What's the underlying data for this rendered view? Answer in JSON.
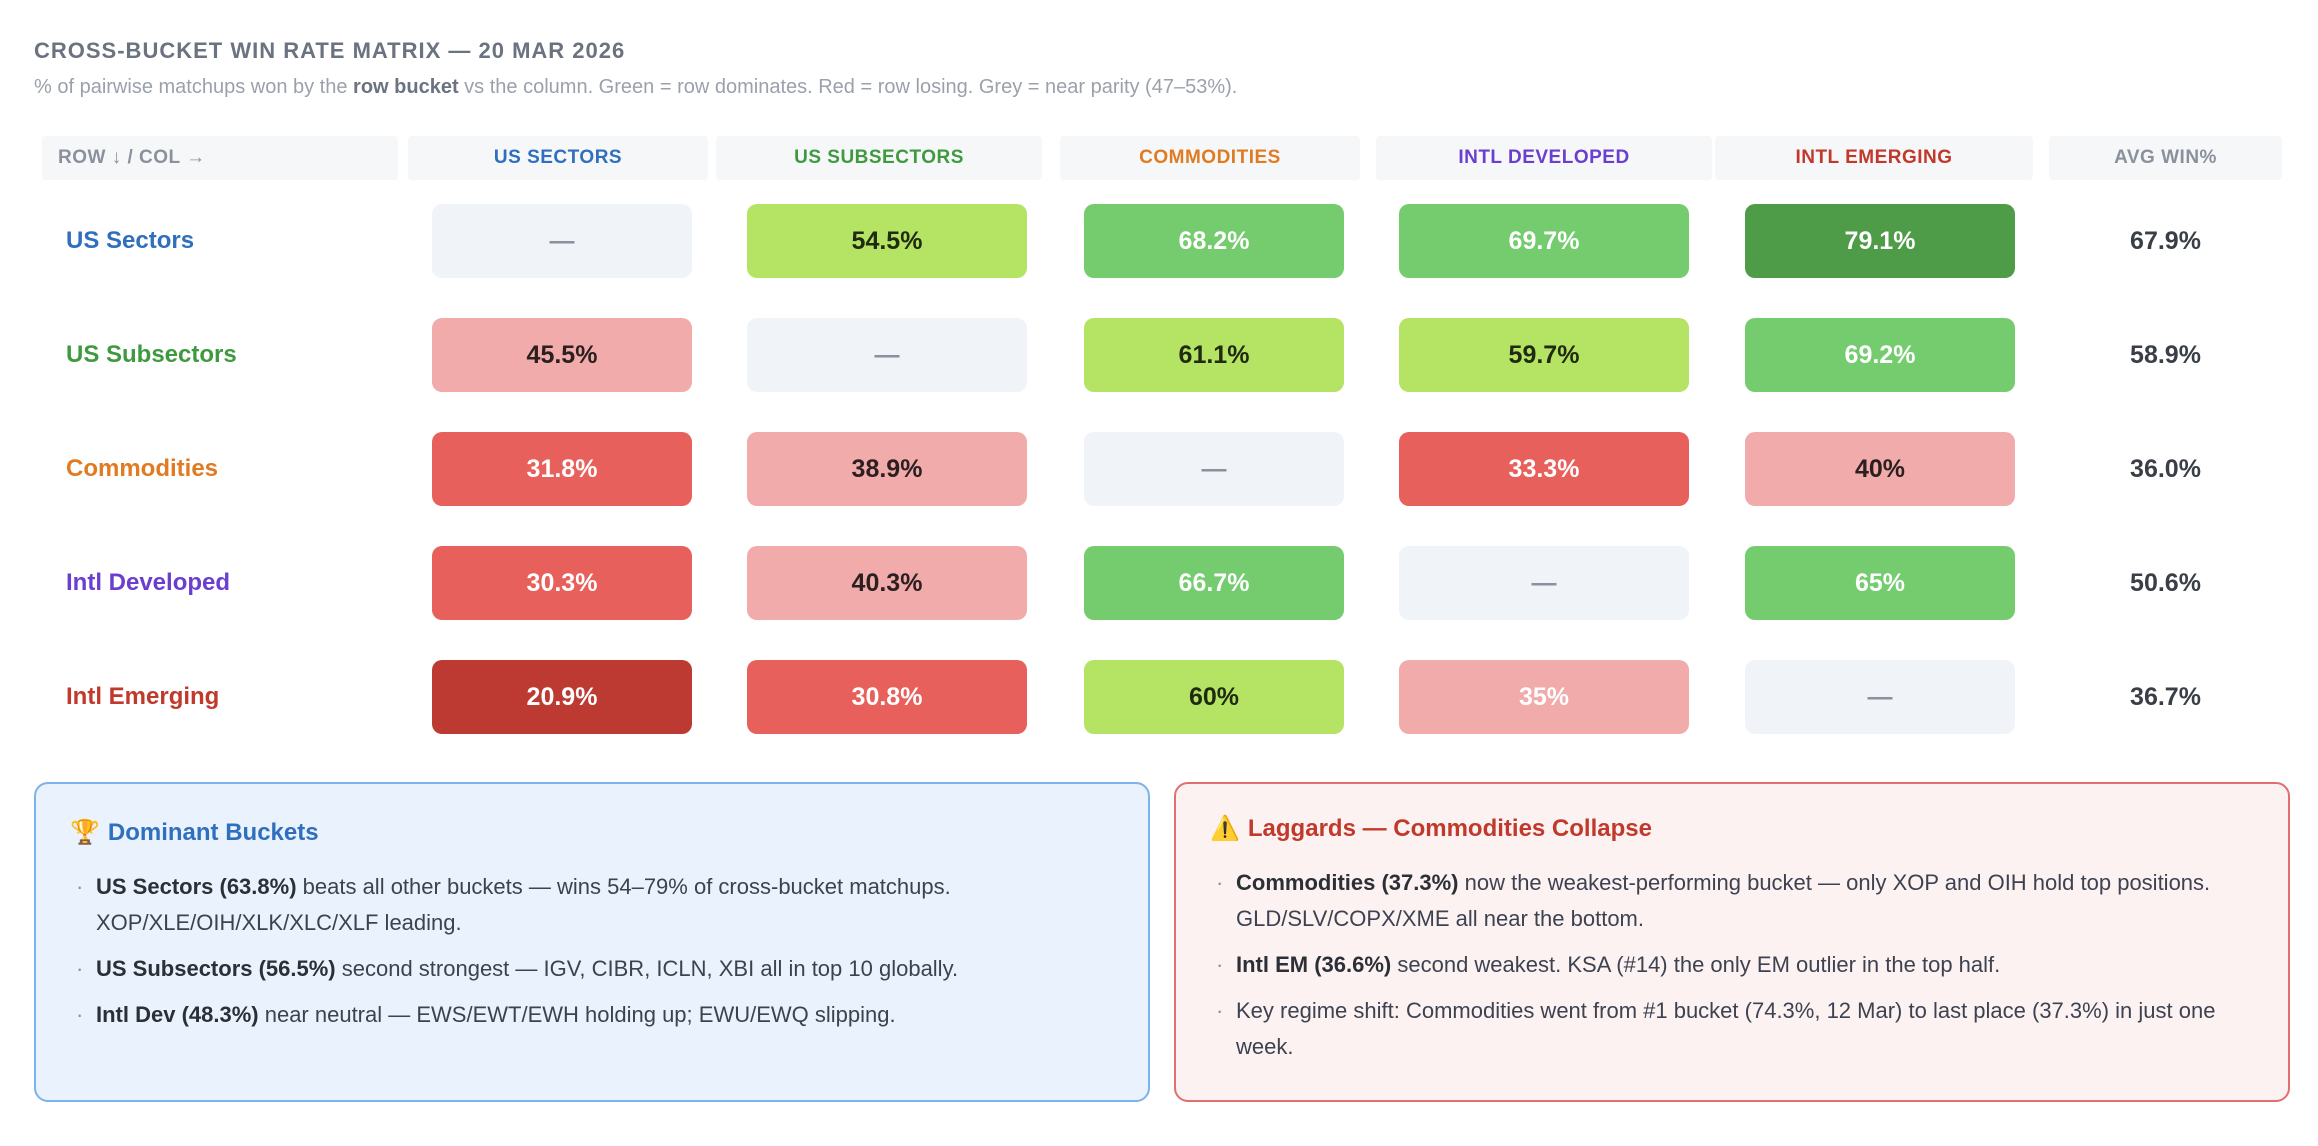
{
  "header": {
    "title": "CROSS-BUCKET WIN RATE MATRIX — 20 MAR 2026",
    "subtitle_pre": "% of pairwise matchups won by the ",
    "subtitle_bold": "row bucket",
    "subtitle_post": " vs the column. Green = row dominates. Red = row losing. Grey = near parity (47–53%)."
  },
  "matrix": {
    "corner_label": "ROW ↓ / COL →",
    "avg_label": "AVG WIN%",
    "columns": [
      {
        "label": "US SECTORS",
        "color": "#2f6fbd"
      },
      {
        "label": "US SUBSECTORS",
        "color": "#3f9a3f"
      },
      {
        "label": "COMMODITIES",
        "color": "#e07b22"
      },
      {
        "label": "INTL DEVELOPED",
        "color": "#6a3fd0"
      },
      {
        "label": "INTL EMERGING",
        "color": "#c0392b"
      }
    ],
    "rows": [
      {
        "label": "US Sectors",
        "color": "#2f6fbd",
        "cells": [
          {
            "text": "—",
            "bg": "#f0f3f8",
            "fg": "#8a919c"
          },
          {
            "text": "54.5%",
            "bg": "#b5e363",
            "fg": "#1f2a10"
          },
          {
            "text": "68.2%",
            "bg": "#74cc6f",
            "fg": "#ffffff"
          },
          {
            "text": "69.7%",
            "bg": "#74cc6f",
            "fg": "#ffffff"
          },
          {
            "text": "79.1%",
            "bg": "#4e9b48",
            "fg": "#ffffff"
          }
        ],
        "avg": "67.9%"
      },
      {
        "label": "US Subsectors",
        "color": "#3f9a3f",
        "cells": [
          {
            "text": "45.5%",
            "bg": "#f2abab",
            "fg": "#2b1f1f"
          },
          {
            "text": "—",
            "bg": "#f0f3f8",
            "fg": "#8a919c"
          },
          {
            "text": "61.1%",
            "bg": "#b5e363",
            "fg": "#1f2a10"
          },
          {
            "text": "59.7%",
            "bg": "#b5e363",
            "fg": "#1f2a10"
          },
          {
            "text": "69.2%",
            "bg": "#74cc6f",
            "fg": "#ffffff"
          }
        ],
        "avg": "58.9%"
      },
      {
        "label": "Commodities",
        "color": "#e07b22",
        "cells": [
          {
            "text": "31.8%",
            "bg": "#e8605c",
            "fg": "#ffffff"
          },
          {
            "text": "38.9%",
            "bg": "#f2abab",
            "fg": "#2b1f1f"
          },
          {
            "text": "—",
            "bg": "#f0f3f8",
            "fg": "#8a919c"
          },
          {
            "text": "33.3%",
            "bg": "#e8605c",
            "fg": "#ffffff"
          },
          {
            "text": "40%",
            "bg": "#f2abab",
            "fg": "#2b1f1f"
          }
        ],
        "avg": "36.0%"
      },
      {
        "label": "Intl Developed",
        "color": "#6a3fd0",
        "cells": [
          {
            "text": "30.3%",
            "bg": "#e8605c",
            "fg": "#ffffff"
          },
          {
            "text": "40.3%",
            "bg": "#f2abab",
            "fg": "#2b1f1f"
          },
          {
            "text": "66.7%",
            "bg": "#74cc6f",
            "fg": "#ffffff"
          },
          {
            "text": "—",
            "bg": "#f0f3f8",
            "fg": "#8a919c"
          },
          {
            "text": "65%",
            "bg": "#74cc6f",
            "fg": "#ffffff"
          }
        ],
        "avg": "50.6%"
      },
      {
        "label": "Intl Emerging",
        "color": "#c0392b",
        "cells": [
          {
            "text": "20.9%",
            "bg": "#bd3a33",
            "fg": "#ffffff"
          },
          {
            "text": "30.8%",
            "bg": "#e8605c",
            "fg": "#ffffff"
          },
          {
            "text": "60%",
            "bg": "#b5e363",
            "fg": "#1f2a10"
          },
          {
            "text": "35%",
            "bg": "#f2abab",
            "fg": "#ffffff"
          },
          {
            "text": "—",
            "bg": "#f0f3f8",
            "fg": "#8a919c"
          }
        ],
        "avg": "36.7%"
      }
    ]
  },
  "dominant": {
    "icon": "trophy-icon",
    "icon_glyph": "🏆",
    "title": "Dominant Buckets",
    "items": [
      {
        "bold": "US Sectors (63.8%)",
        "text": " beats all other buckets — wins 54–79% of cross-bucket matchups. XOP/XLE/OIH/XLK/XLC/XLF leading."
      },
      {
        "bold": "US Subsectors (56.5%)",
        "text": " second strongest — IGV, CIBR, ICLN, XBI all in top 10 globally."
      },
      {
        "bold": "Intl Dev (48.3%)",
        "text": " near neutral — EWS/EWT/EWH holding up; EWU/EWQ slipping."
      }
    ]
  },
  "laggards": {
    "icon": "warning-icon",
    "icon_glyph": "⚠️",
    "title": "Laggards — Commodities Collapse",
    "items": [
      {
        "bold": "Commodities (37.3%)",
        "text": " now the weakest-performing bucket — only XOP and OIH hold top positions. GLD/SLV/COPX/XME all near the bottom."
      },
      {
        "bold": "Intl EM (36.6%)",
        "text": " second weakest. KSA (#14) the only EM outlier in the top half."
      },
      {
        "bold": "",
        "text": "Key regime shift: Commodities went from #1 bucket (74.3%, 12 Mar) to last place (37.3%) in just one week."
      }
    ]
  }
}
